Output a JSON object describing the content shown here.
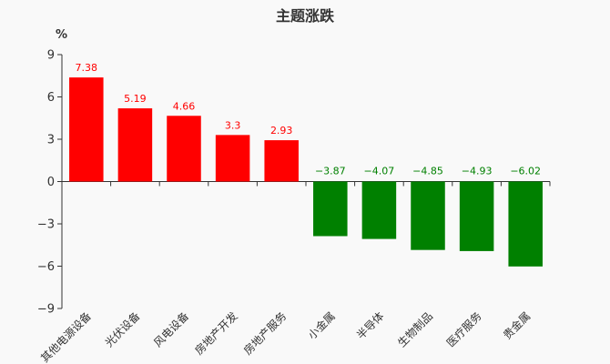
{
  "chart_data": {
    "type": "bar",
    "title": "主题涨跌",
    "ylabel": "%",
    "xlabel": "",
    "ylim": [
      -9,
      9
    ],
    "yticks": [
      9,
      6,
      3,
      0,
      -3,
      -6,
      -9
    ],
    "ytick_labels": [
      "9",
      "6",
      "3",
      "0",
      "−3",
      "−6",
      "−9"
    ],
    "grid": false,
    "legend": "none",
    "categories": [
      "其他电源设备",
      "光伏设备",
      "风电设备",
      "房地产开发",
      "房地产服务",
      "小金属",
      "半导体",
      "生物制品",
      "医疗服务",
      "贵金属"
    ],
    "values": [
      7.38,
      5.19,
      4.66,
      3.3,
      2.93,
      -3.87,
      -4.07,
      -4.85,
      -4.93,
      -6.02
    ],
    "value_labels": [
      "7.38",
      "5.19",
      "4.66",
      "3.3",
      "2.93",
      "−3.87",
      "−4.07",
      "−4.85",
      "−4.93",
      "−6.02"
    ],
    "colors": {
      "positive": "#ff0000",
      "negative": "#008000",
      "axis": "#333333",
      "tick_text": "#333333"
    }
  }
}
